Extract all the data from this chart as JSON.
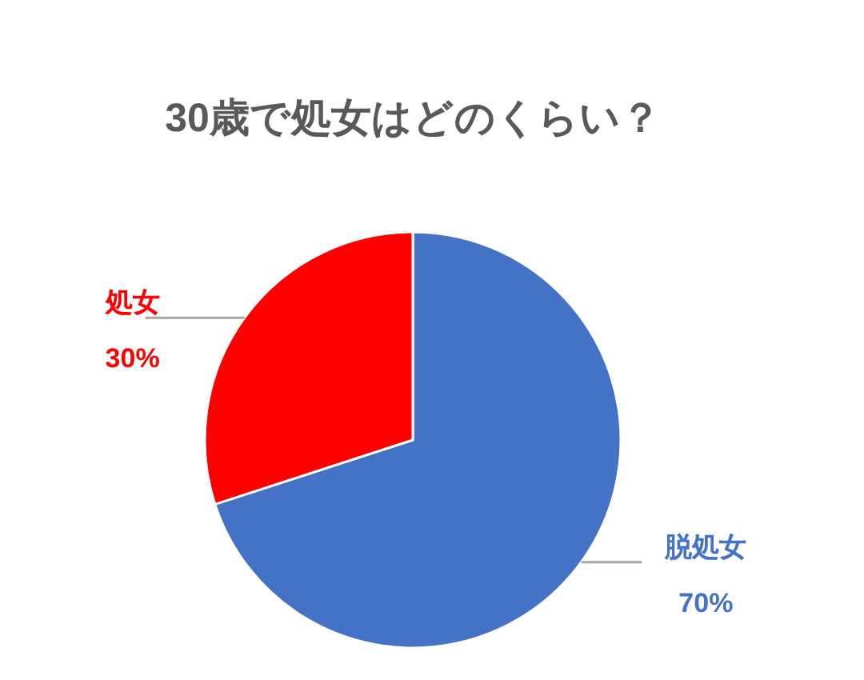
{
  "chart_data": {
    "type": "pie",
    "title": "30歳で処女はどのくらい？",
    "categories": [
      "脱処女",
      "処女"
    ],
    "values": [
      70,
      30
    ],
    "colors": [
      "#4472c4",
      "#ff0000"
    ],
    "value_labels": [
      "70%",
      "30%"
    ]
  }
}
